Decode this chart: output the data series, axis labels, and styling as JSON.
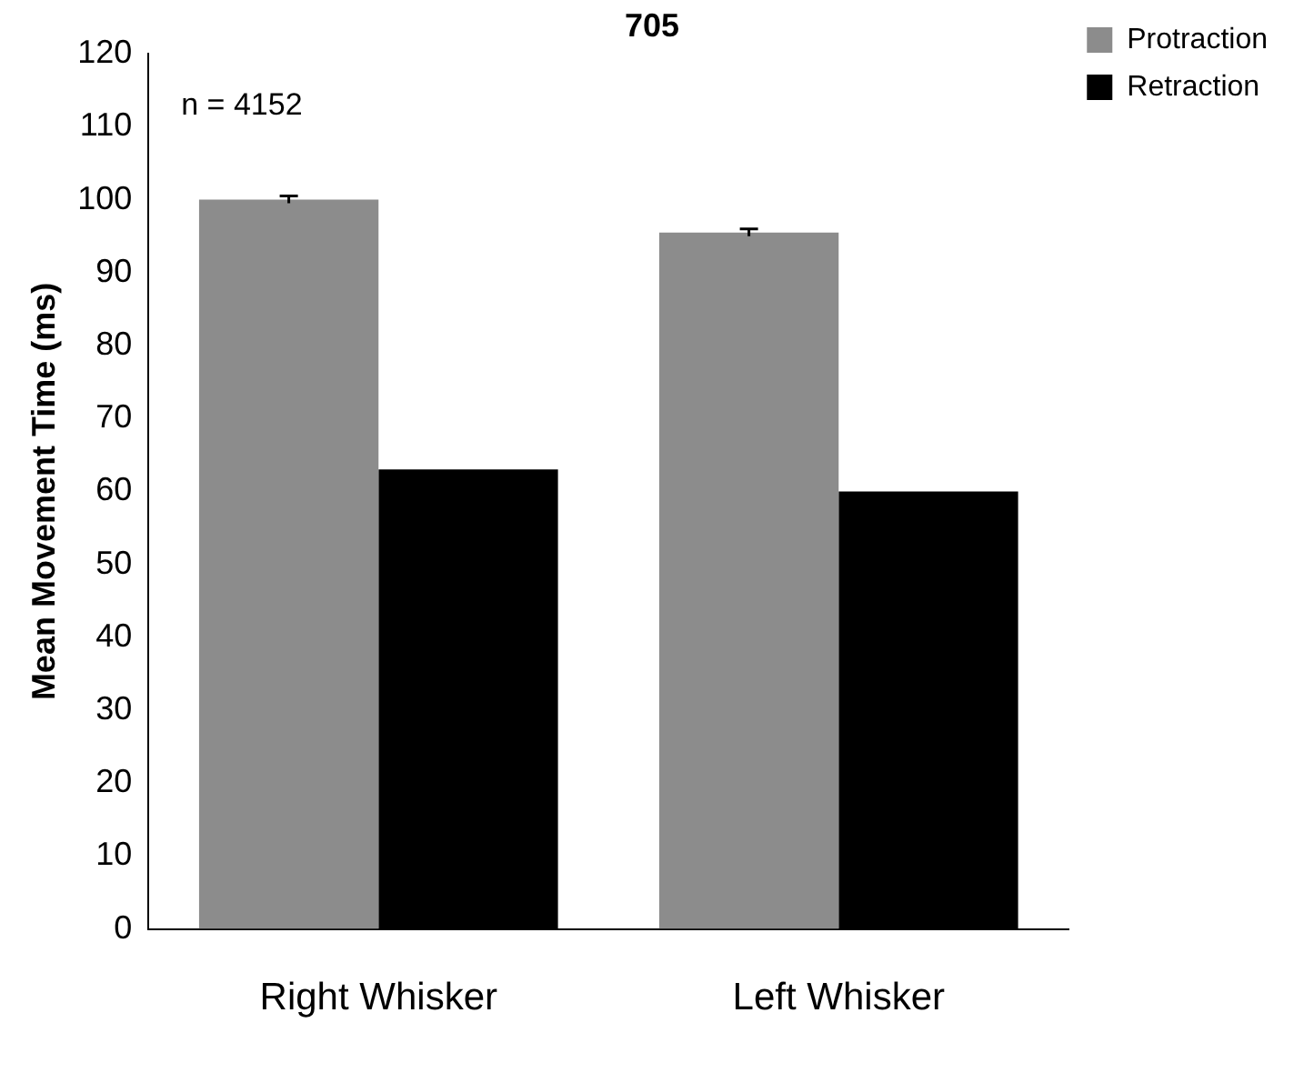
{
  "chart_data": {
    "type": "bar",
    "title": "705",
    "ylabel": "Mean Movement Time (ms)",
    "categories": [
      "Right Whisker",
      "Left Whisker"
    ],
    "series": [
      {
        "name": "Protraction",
        "color": "#8c8c8c",
        "values": [
          100,
          95.5
        ],
        "errors": [
          0.5,
          0.5
        ]
      },
      {
        "name": "Retraction",
        "color": "#000000",
        "values": [
          63,
          60
        ]
      }
    ],
    "ylim": [
      0,
      120
    ],
    "yticks": [
      0,
      10,
      20,
      30,
      40,
      50,
      60,
      70,
      80,
      90,
      100,
      110,
      120
    ],
    "grid": false,
    "legend": "top right",
    "annotations": [
      "n = 4152"
    ]
  }
}
